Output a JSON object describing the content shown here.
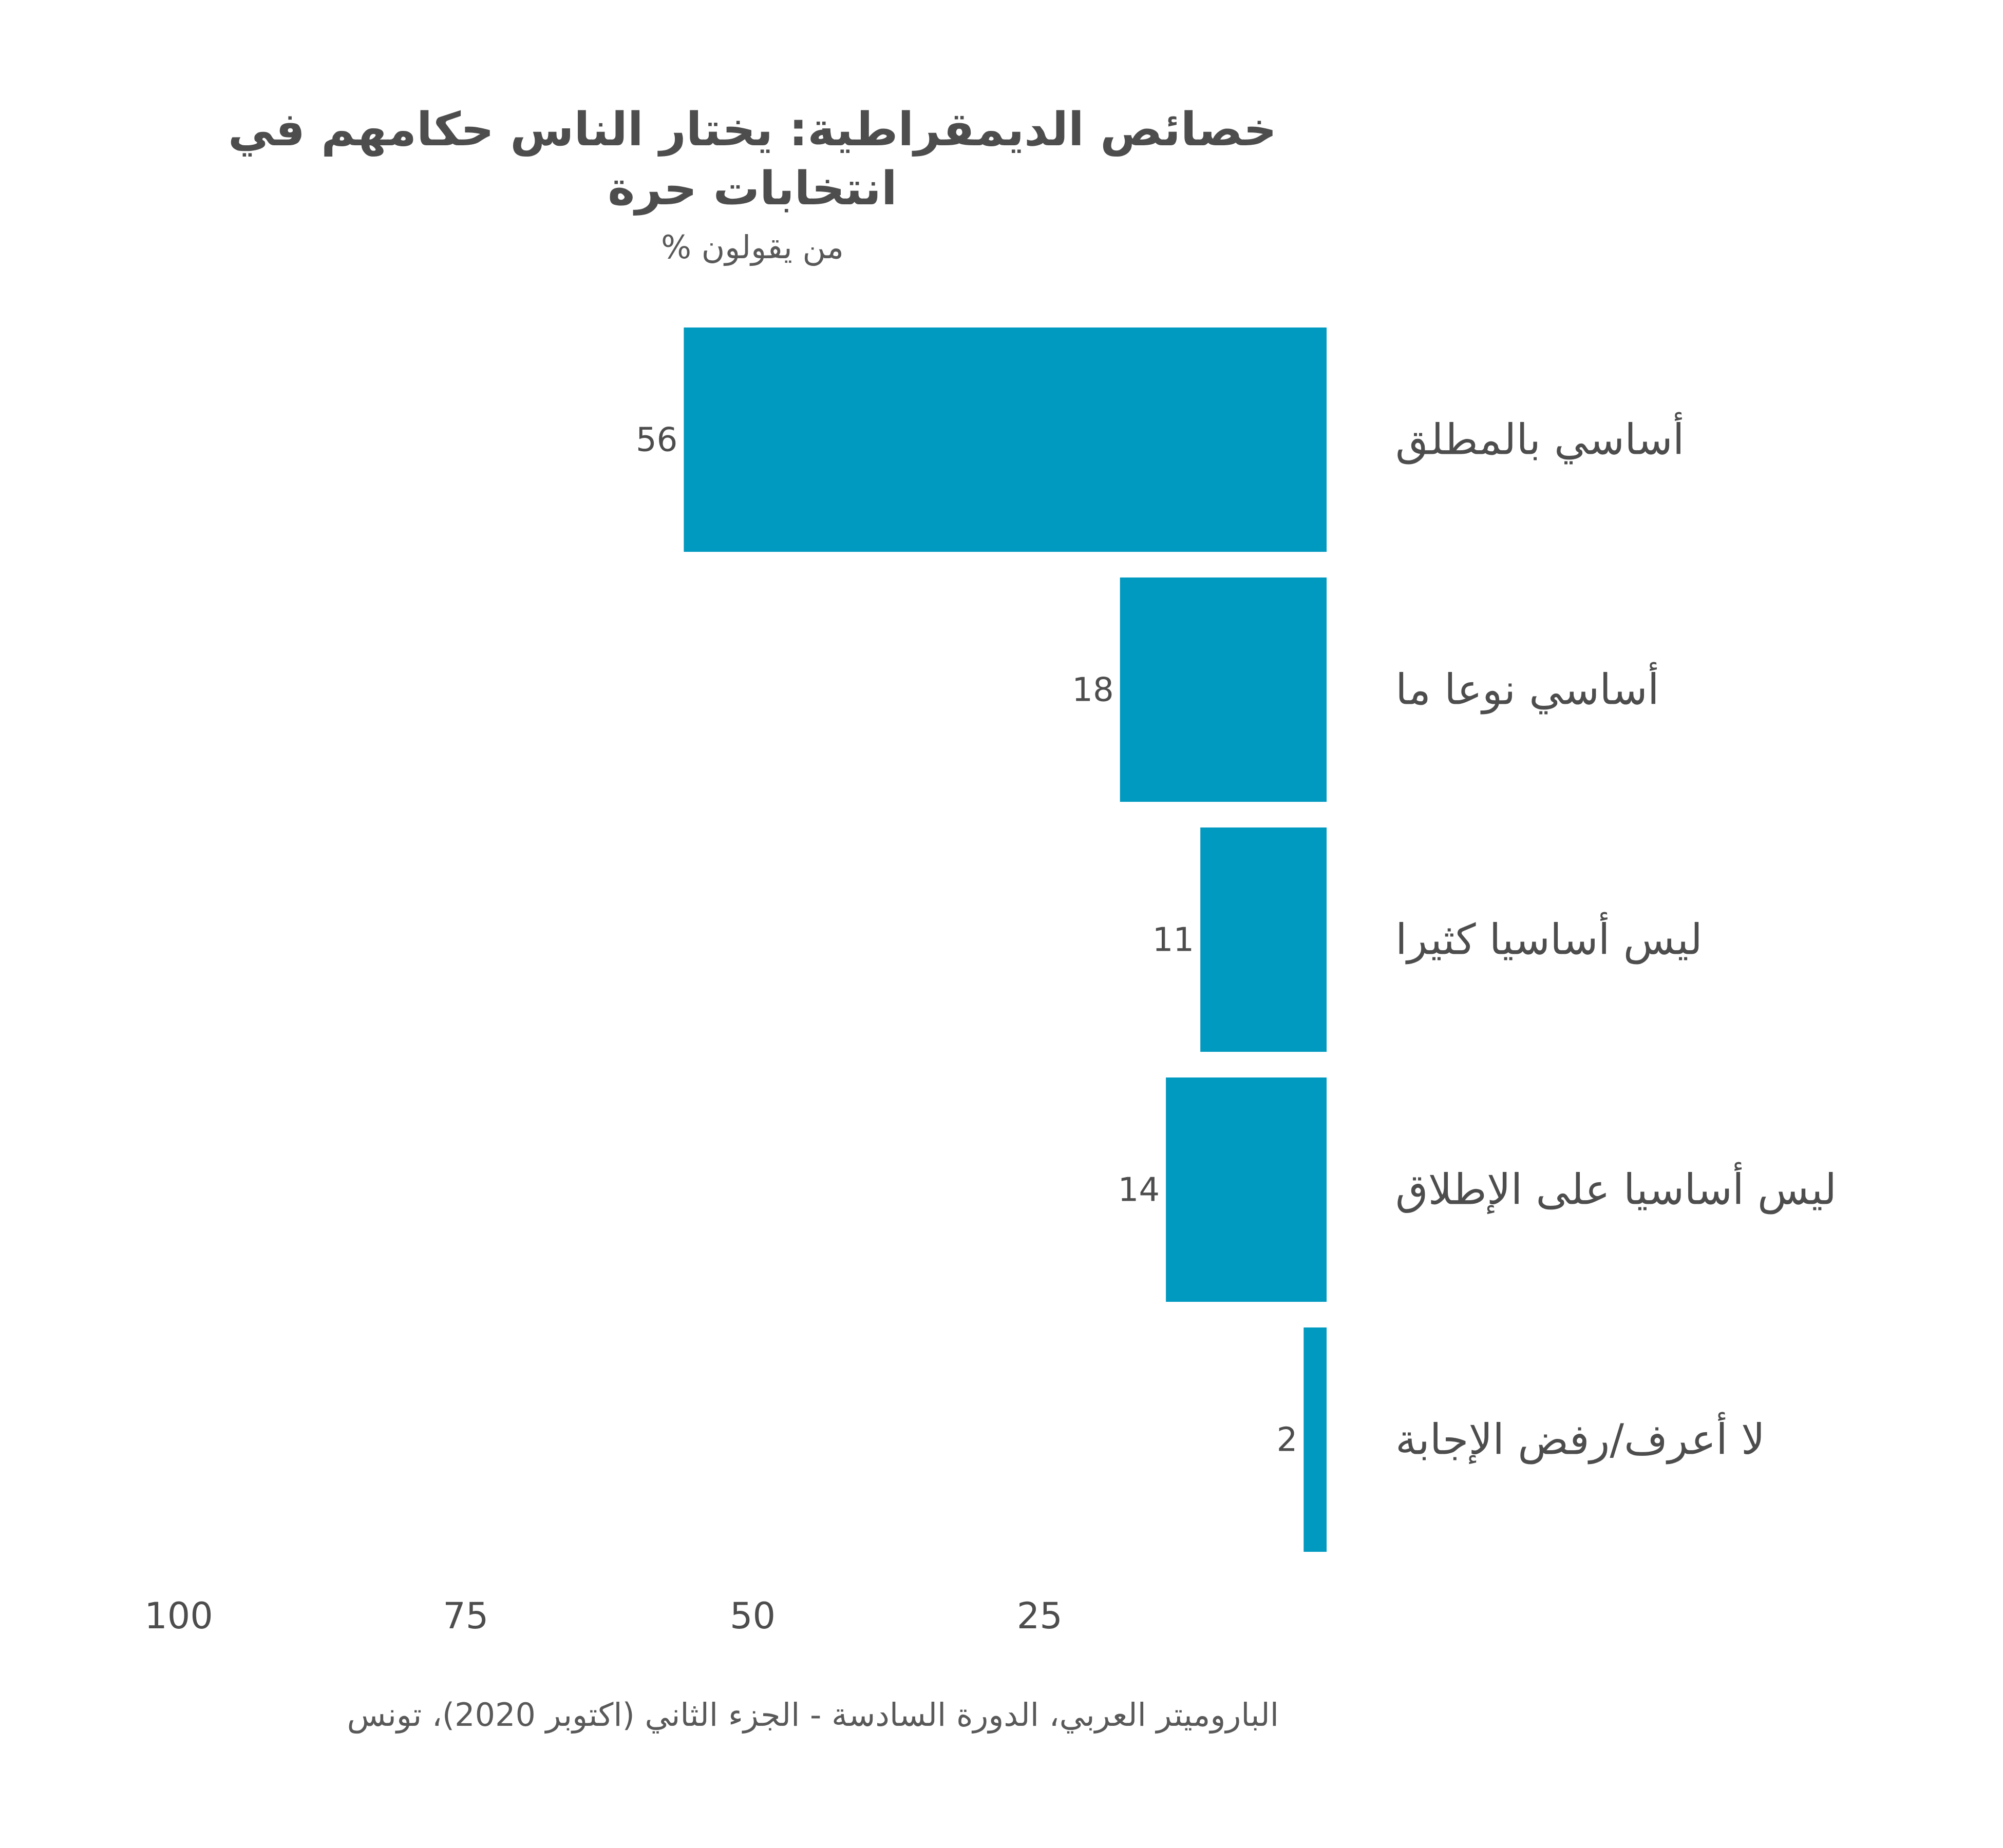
{
  "chart_data": {
    "type": "bar",
    "orientation": "horizontal",
    "direction": "right-to-left",
    "title_lines": [
      "خصائص الديمقراطية: يختار الناس حكامهم في",
      "انتخابات حرة"
    ],
    "subtitle": "% من يقولون",
    "categories": [
      "أساسي بالمطلق",
      "أساسي نوعا ما",
      "ليس أساسيا كثيرا",
      "ليس أساسيا على الإطلاق",
      "لا أعرف/رفض الإجابة"
    ],
    "values": [
      56,
      18,
      11,
      14,
      2
    ],
    "value_labels": [
      "56",
      "18",
      "11",
      "14",
      "2"
    ],
    "xlim": [
      0,
      100
    ],
    "x_ticks": [
      100,
      75,
      50,
      25
    ],
    "x_tick_labels": [
      "100",
      "75",
      "50",
      "25"
    ],
    "grid": false,
    "legend": "none",
    "bar_color": "#0099bf",
    "caption": "الباروميتر العربي، الدورة السادسة - الجزء الثاني (اكتوبر 2020)، تونس"
  },
  "colors": {
    "bar": "#0099bf",
    "text": "#4d4d4d",
    "background": "#ffffff"
  }
}
